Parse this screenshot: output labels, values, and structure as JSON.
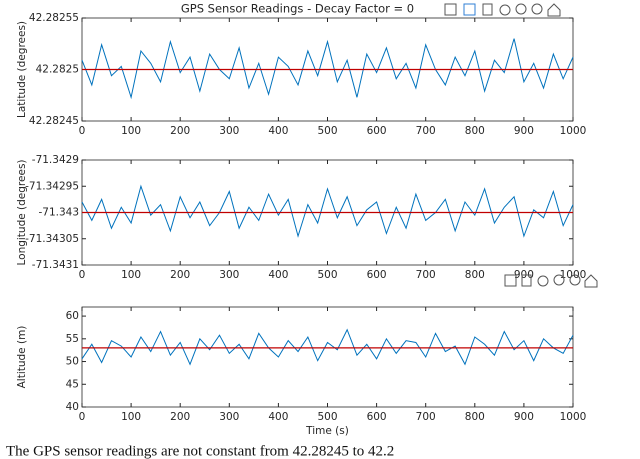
{
  "caption": "The GPS sensor readings are not constant from 42.28245 to 42.2",
  "chart_data": [
    {
      "type": "line",
      "title": "GPS Sensor Readings - Decay Factor = 0",
      "ylabel": "Latitude (degrees)",
      "x": [
        0,
        20,
        40,
        60,
        80,
        100,
        120,
        140,
        160,
        180,
        200,
        220,
        240,
        260,
        280,
        300,
        320,
        340,
        360,
        380,
        400,
        420,
        440,
        460,
        480,
        500,
        520,
        540,
        560,
        580,
        600,
        620,
        640,
        660,
        680,
        700,
        720,
        740,
        760,
        780,
        800,
        820,
        840,
        860,
        880,
        900,
        920,
        940,
        960,
        980,
        1000
      ],
      "series": [
        {
          "color": "#0072bd",
          "values": [
            42.282509,
            42.282485,
            42.282524,
            42.282494,
            42.282503,
            42.282473,
            42.282518,
            42.282506,
            42.282488,
            42.282527,
            42.282497,
            42.282512,
            42.282479,
            42.282515,
            42.2825,
            42.282491,
            42.282521,
            42.282482,
            42.282506,
            42.282476,
            42.282512,
            42.282503,
            42.282485,
            42.282518,
            42.282494,
            42.282527,
            42.282488,
            42.282509,
            42.282473,
            42.282515,
            42.282497,
            42.282521,
            42.282491,
            42.282506,
            42.282482,
            42.282524,
            42.2825,
            42.282485,
            42.282512,
            42.282494,
            42.282518,
            42.282479,
            42.282509,
            42.282497,
            42.28253,
            42.282488,
            42.282506,
            42.282482,
            42.282515,
            42.282491,
            42.282512
          ]
        }
      ],
      "reference_line": {
        "value": 42.2825,
        "color": "#c00000"
      },
      "xlim": [
        0,
        1000
      ],
      "xticks": [
        0,
        100,
        200,
        300,
        400,
        500,
        600,
        700,
        800,
        900,
        1000
      ],
      "ylim": [
        42.28245,
        42.28255
      ],
      "yticks": [
        42.28245,
        42.2825,
        42.28255
      ]
    },
    {
      "type": "line",
      "ylabel": "Longitude (degrees)",
      "x": [
        0,
        20,
        40,
        60,
        80,
        100,
        120,
        140,
        160,
        180,
        200,
        220,
        240,
        260,
        280,
        300,
        320,
        340,
        360,
        380,
        400,
        420,
        440,
        460,
        480,
        500,
        520,
        540,
        560,
        580,
        600,
        620,
        640,
        660,
        680,
        700,
        720,
        740,
        760,
        780,
        800,
        820,
        840,
        860,
        880,
        900,
        920,
        940,
        960,
        980,
        1000
      ],
      "series": [
        {
          "color": "#0072bd",
          "values": [
            -71.34298,
            -71.343015,
            -71.342975,
            -71.34303,
            -71.34299,
            -71.34302,
            -71.34295,
            -71.343005,
            -71.342985,
            -71.343035,
            -71.34297,
            -71.34301,
            -71.34298,
            -71.343025,
            -71.343,
            -71.34296,
            -71.34303,
            -71.34299,
            -71.343015,
            -71.342965,
            -71.343005,
            -71.342975,
            -71.343045,
            -71.342985,
            -71.34302,
            -71.342955,
            -71.34301,
            -71.34297,
            -71.343025,
            -71.342995,
            -71.34298,
            -71.34304,
            -71.34299,
            -71.34303,
            -71.342965,
            -71.343015,
            -71.343,
            -71.342975,
            -71.343035,
            -71.34298,
            -71.343005,
            -71.342955,
            -71.34302,
            -71.34299,
            -71.34297,
            -71.343045,
            -71.342995,
            -71.34301,
            -71.34296,
            -71.343025,
            -71.342985
          ]
        }
      ],
      "reference_line": {
        "value": -71.343,
        "color": "#c00000"
      },
      "xlim": [
        0,
        1000
      ],
      "xticks": [
        0,
        100,
        200,
        300,
        400,
        500,
        600,
        700,
        800,
        900,
        1000
      ],
      "ylim": [
        -71.3431,
        -71.3429
      ],
      "yticks": [
        -71.3431,
        -71.34305,
        -71.343,
        -71.34295,
        -71.3429
      ]
    },
    {
      "type": "line",
      "ylabel": "Altitude (m)",
      "xlabel": "Time (s)",
      "x": [
        0,
        20,
        40,
        60,
        80,
        100,
        120,
        140,
        160,
        180,
        200,
        220,
        240,
        260,
        280,
        300,
        320,
        340,
        360,
        380,
        400,
        420,
        440,
        460,
        480,
        500,
        520,
        540,
        560,
        580,
        600,
        620,
        640,
        660,
        680,
        700,
        720,
        740,
        760,
        780,
        800,
        820,
        840,
        860,
        880,
        900,
        920,
        940,
        960,
        980,
        1000
      ],
      "series": [
        {
          "color": "#0072bd",
          "values": [
            50.6,
            53.8,
            49.8,
            54.6,
            53.4,
            51,
            55.4,
            52.2,
            56.6,
            51.4,
            54.2,
            49.4,
            55,
            52.6,
            55.8,
            51.8,
            53.8,
            50.6,
            56.2,
            53,
            51,
            54.6,
            52.2,
            55.4,
            50.2,
            54.2,
            52.6,
            57,
            51.4,
            53.8,
            50.6,
            55,
            51.8,
            54.6,
            54.2,
            51,
            56.2,
            52.2,
            53.4,
            49.4,
            55.4,
            53.8,
            51.4,
            56.6,
            52.6,
            54.6,
            50.2,
            55,
            53,
            51.8,
            55.8
          ]
        }
      ],
      "reference_line": {
        "value": 53,
        "color": "#c00000"
      },
      "xlim": [
        0,
        1000
      ],
      "xticks": [
        0,
        100,
        200,
        300,
        400,
        500,
        600,
        700,
        800,
        900,
        1000
      ],
      "ylim": [
        40,
        62
      ],
      "yticks": [
        40,
        45,
        50,
        55,
        60
      ]
    }
  ]
}
